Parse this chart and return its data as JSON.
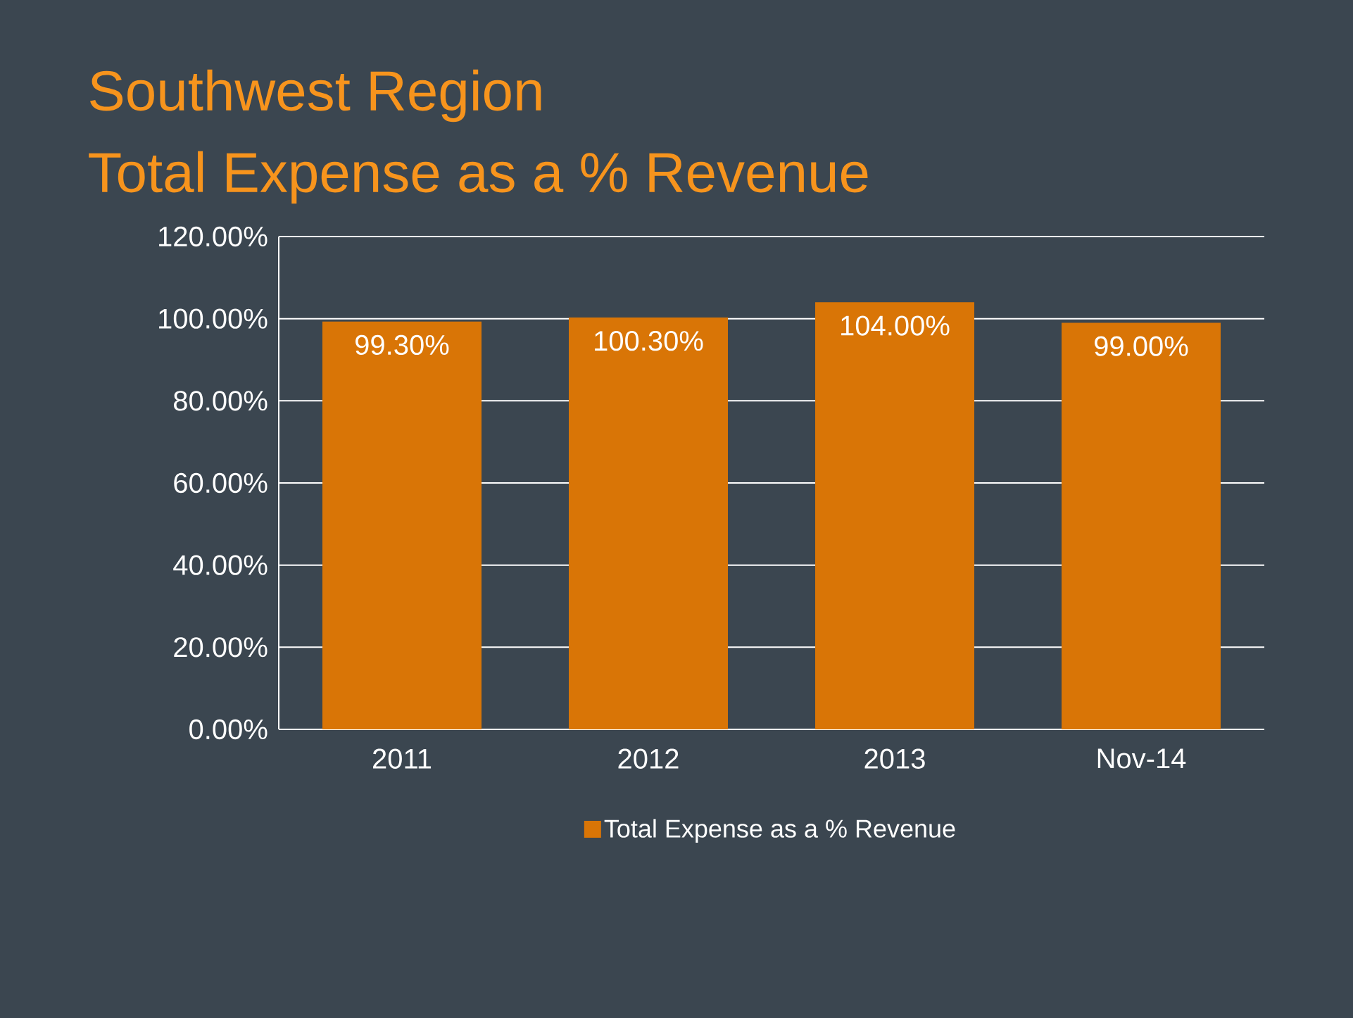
{
  "chart_data": {
    "type": "bar",
    "title": "Southwest Region",
    "subtitle": "Total Expense as a % Revenue",
    "categories": [
      "2011",
      "2012",
      "2013",
      "Nov-14"
    ],
    "series": [
      {
        "name": "Total Expense as a % Revenue",
        "color": "#d97506",
        "values": [
          99.3,
          100.3,
          104,
          99.0
        ],
        "value_labels": [
          "99.30%",
          "100.30%",
          "104.00%",
          "99.00%"
        ]
      }
    ],
    "ylim": [
      0,
      120
    ],
    "yticks": [
      {
        "value": 0,
        "label": "0.00%"
      },
      {
        "value": 20,
        "label": "20.00%"
      },
      {
        "value": 40,
        "label": "40.00%"
      },
      {
        "value": 60,
        "label": "60.00%"
      },
      {
        "value": 80,
        "label": "80.00%"
      },
      {
        "value": 100,
        "label": "100.00%"
      },
      {
        "value": 120,
        "label": "120.00%"
      }
    ],
    "grid": "y",
    "legend": "bottom"
  }
}
